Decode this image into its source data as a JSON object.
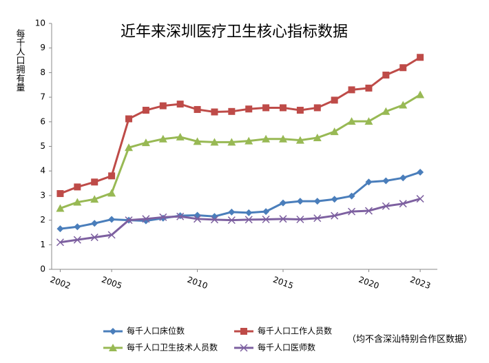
{
  "chart_data": {
    "type": "line",
    "title": "近年来深圳医疗卫生核心指标数据",
    "y_label": "每千人口拥有量",
    "annotation": "（均不含深汕特别合作区数据）",
    "x": [
      2002,
      2003,
      2004,
      2005,
      2006,
      2007,
      2008,
      2009,
      2010,
      2011,
      2012,
      2013,
      2014,
      2015,
      2016,
      2017,
      2018,
      2019,
      2020,
      2021,
      2022,
      2023
    ],
    "xlim": [
      2001.5,
      2024
    ],
    "xticks": [
      2002,
      2005,
      2010,
      2015,
      2020,
      2023
    ],
    "ylim": [
      0,
      10
    ],
    "yticks": [
      0,
      1,
      2,
      3,
      4,
      5,
      6,
      7,
      8,
      9,
      10
    ],
    "grid": false,
    "legend": "bottom",
    "series": [
      {
        "name": "每千人口床位数",
        "color": "#4a7ebb",
        "marker": "diamond",
        "values": [
          1.65,
          1.73,
          1.87,
          2.03,
          2.0,
          1.97,
          2.08,
          2.18,
          2.2,
          2.15,
          2.33,
          2.3,
          2.35,
          2.7,
          2.77,
          2.77,
          2.85,
          2.98,
          3.55,
          3.6,
          3.72,
          3.95
        ]
      },
      {
        "name": "每千人口工作人员数",
        "color": "#be4b48",
        "marker": "square",
        "values": [
          3.08,
          3.35,
          3.55,
          3.8,
          6.12,
          6.47,
          6.65,
          6.72,
          6.5,
          6.4,
          6.42,
          6.52,
          6.57,
          6.57,
          6.47,
          6.57,
          6.88,
          7.3,
          7.37,
          7.9,
          8.2,
          8.62
        ]
      },
      {
        "name": "每千人口卫生技术人员数",
        "color": "#98b954",
        "marker": "triangle",
        "values": [
          2.48,
          2.73,
          2.85,
          3.1,
          4.95,
          5.15,
          5.3,
          5.38,
          5.2,
          5.17,
          5.17,
          5.22,
          5.3,
          5.3,
          5.25,
          5.35,
          5.6,
          6.02,
          6.02,
          6.42,
          6.68,
          7.1
        ]
      },
      {
        "name": "每千人口医师数",
        "color": "#7d60a0",
        "marker": "x",
        "values": [
          1.1,
          1.2,
          1.3,
          1.4,
          2.0,
          2.05,
          2.12,
          2.15,
          2.05,
          2.02,
          2.0,
          2.02,
          2.03,
          2.05,
          2.03,
          2.08,
          2.18,
          2.35,
          2.38,
          2.57,
          2.67,
          2.87
        ]
      }
    ]
  }
}
